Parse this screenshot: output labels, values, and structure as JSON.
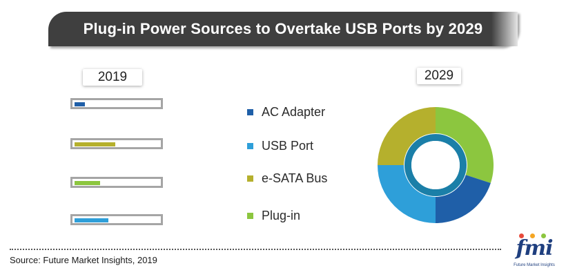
{
  "title": "Plug-in Power Sources to Overtake USB Ports by 2029",
  "source": "Source: Future Market Insights, 2019",
  "logo": {
    "mark": "fmi",
    "subtitle": "Future Market Insights"
  },
  "colors": {
    "ac_adapter": "#1f5fa8",
    "usb_port": "#2e9fd9",
    "esata_bus": "#b5b02d",
    "plug_in": "#8cc63f"
  },
  "chart_data": [
    {
      "type": "bar",
      "title": "2019",
      "orientation": "horizontal",
      "categories": [
        "AC Adapter",
        "e-SATA Bus",
        "Plug-in",
        "USB Port"
      ],
      "values": [
        12,
        48,
        30,
        40
      ],
      "xlim": [
        0,
        100
      ],
      "grid": false
    },
    {
      "type": "pie",
      "style": "donut",
      "title": "2029",
      "labels": [
        "Plug-in",
        "AC Adapter",
        "USB Port",
        "e-SATA Bus"
      ],
      "values": [
        30,
        20,
        25,
        25
      ]
    }
  ],
  "legend": {
    "placement": "center",
    "items": [
      {
        "label": "AC Adapter",
        "color": "#1f5fa8"
      },
      {
        "label": "USB Port",
        "color": "#2e9fd9"
      },
      {
        "label": "e-SATA Bus",
        "color": "#b5b02d"
      },
      {
        "label": "Plug-in",
        "color": "#8cc63f"
      }
    ]
  }
}
